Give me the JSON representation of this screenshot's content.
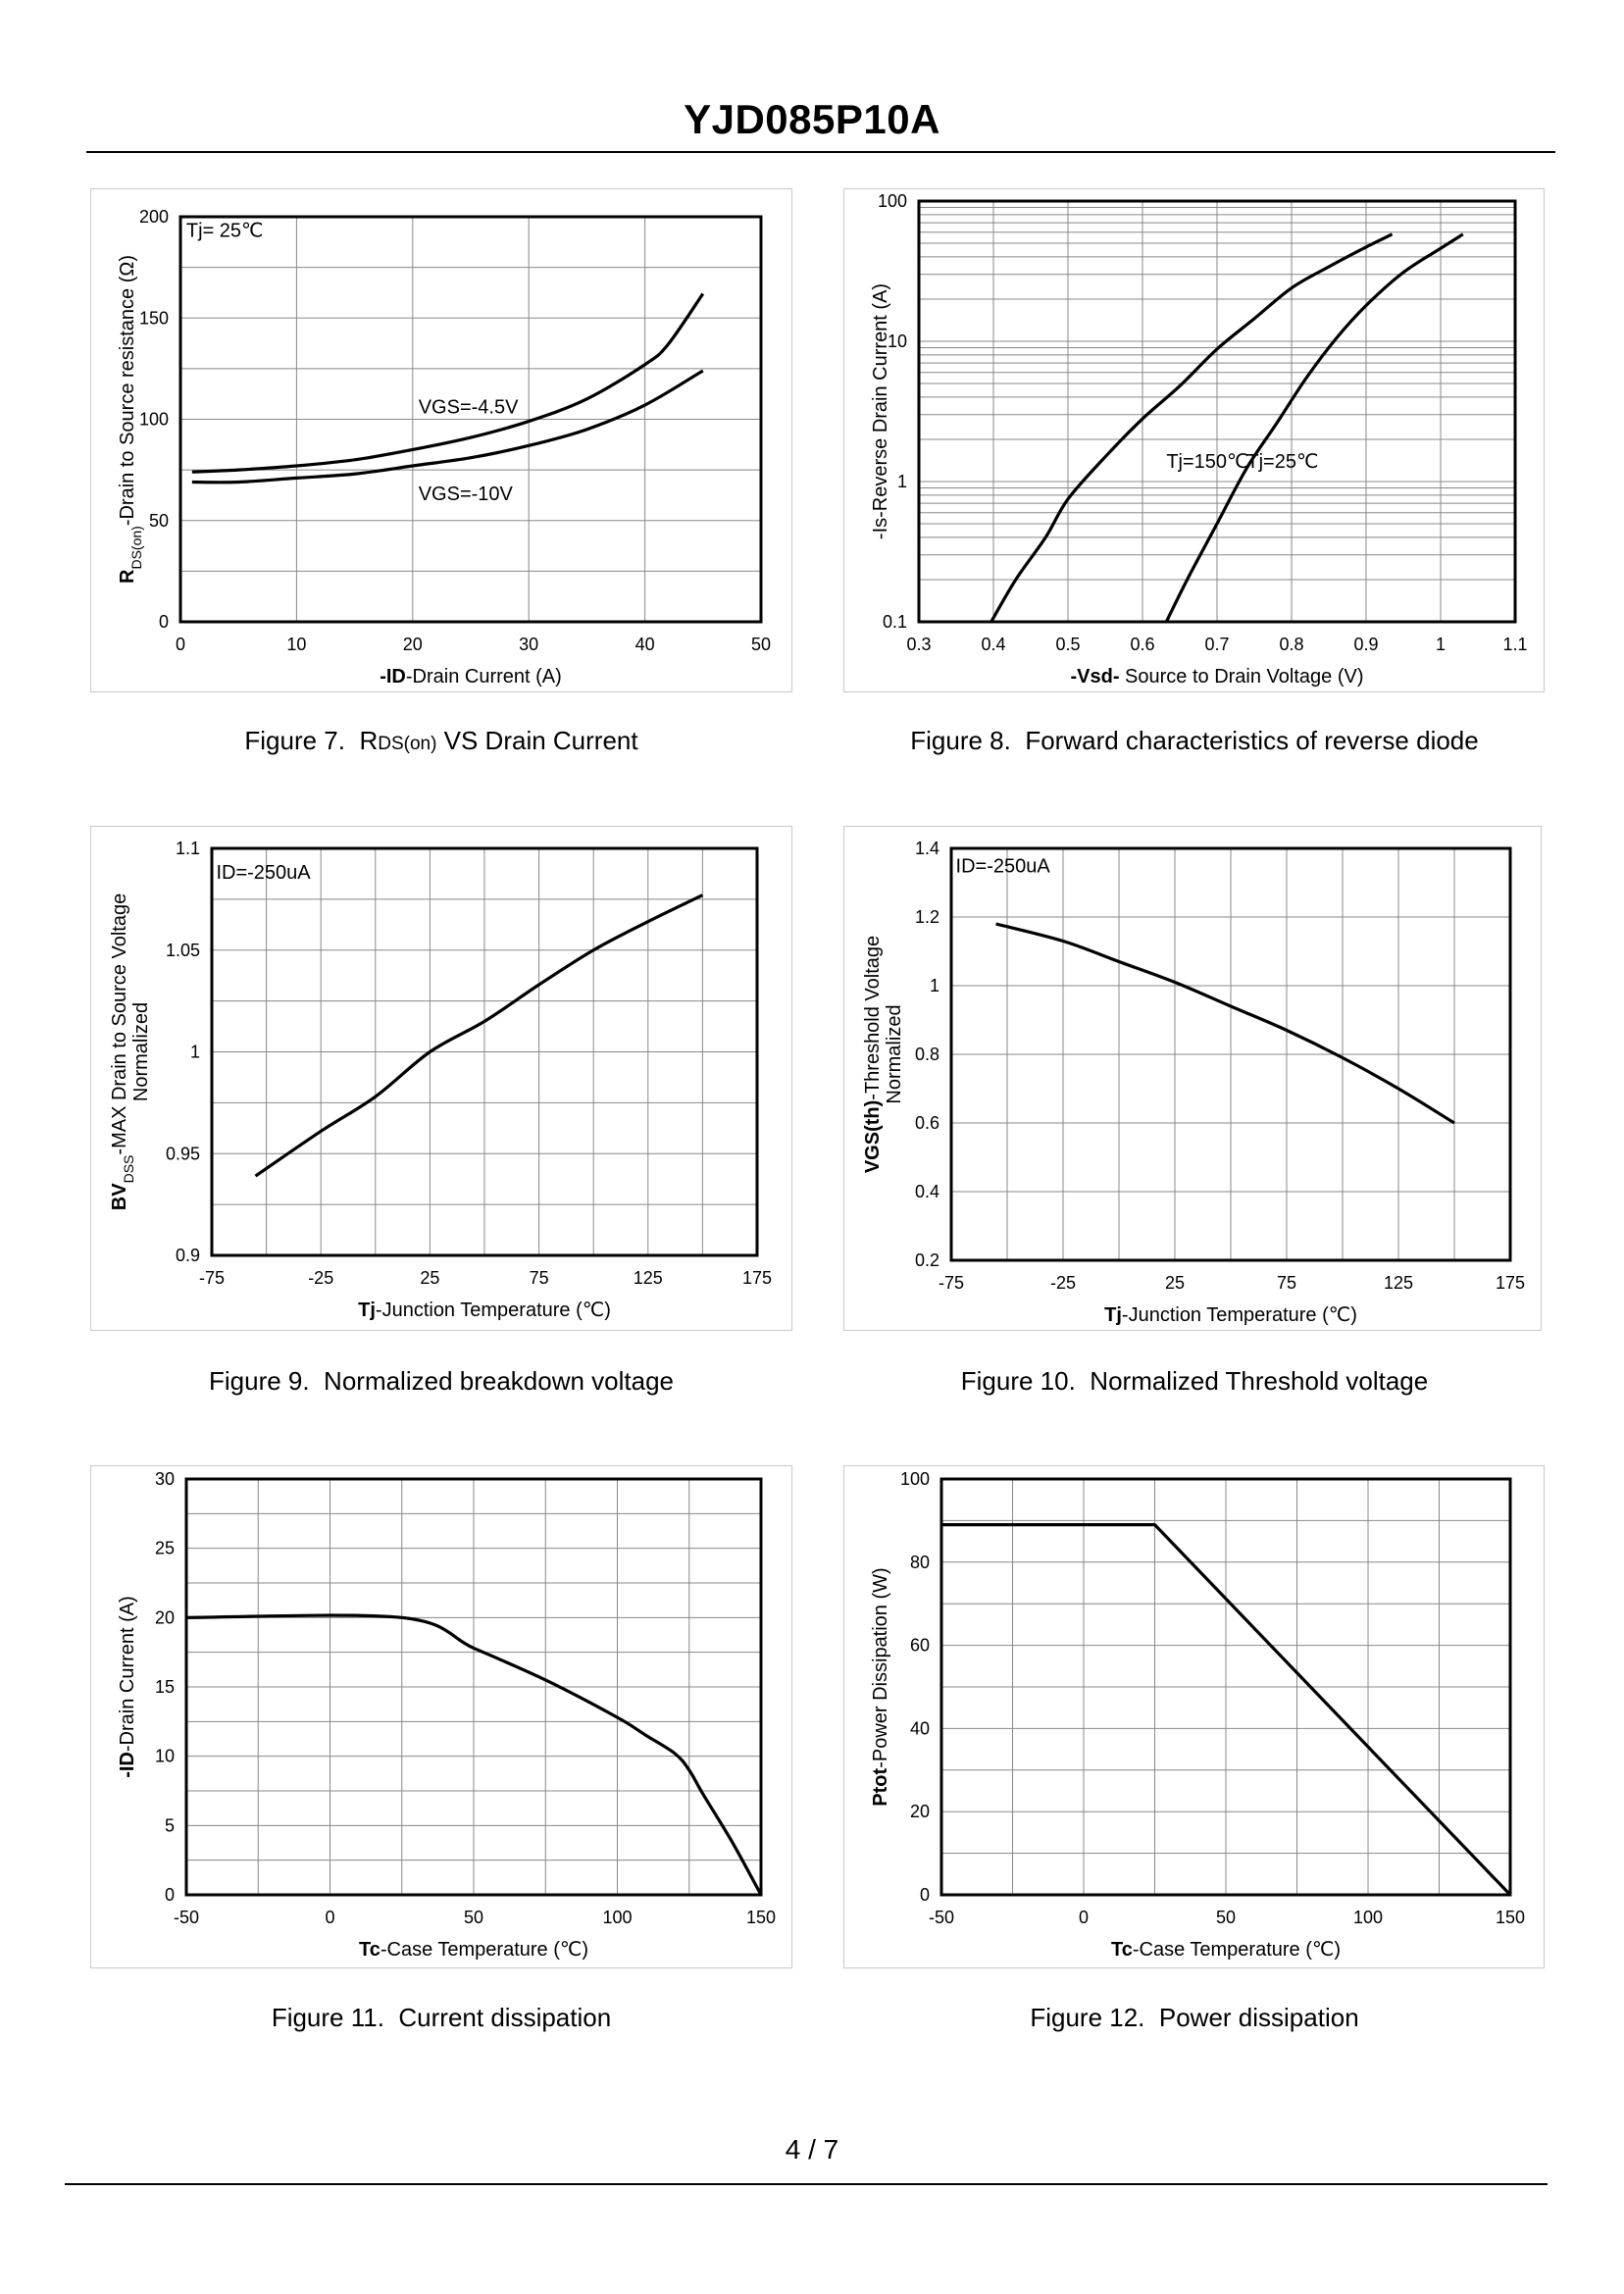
{
  "document": {
    "title": "YJD085P10A",
    "page": "4 / 7"
  },
  "captions": [
    {
      "figure": "Figure 7.",
      "prefix": "R",
      "sub": "DS(on)",
      "suffix": " VS Drain Current"
    },
    {
      "figure": "Figure 8.",
      "prefix": "Forward characteristics of reverse diode",
      "sub": "",
      "suffix": ""
    },
    {
      "figure": "Figure 9.",
      "prefix": "Normalized breakdown voltage",
      "sub": "",
      "suffix": ""
    },
    {
      "figure": "Figure 10.",
      "prefix": "Normalized Threshold voltage",
      "sub": "",
      "suffix": ""
    },
    {
      "figure": "Figure 11.",
      "prefix": "Current dissipation",
      "sub": "",
      "suffix": ""
    },
    {
      "figure": "Figure 12.",
      "prefix": "Power dissipation",
      "sub": "",
      "suffix": ""
    }
  ],
  "chart_data": [
    {
      "type": "line",
      "title": "Figure 7. RDS(on) VS Drain Current",
      "xlabel": {
        "bold": "-ID",
        "rest": "-Drain Current (A)"
      },
      "ylabel": {
        "runs": [
          {
            "t": "R",
            "b": true
          },
          {
            "t": "DS(on)",
            "sub": true
          },
          {
            "t": "-Drain to Source resistance (Ω)"
          }
        ]
      },
      "xlim": [
        0,
        50
      ],
      "ylim": [
        0,
        200
      ],
      "xscale": "linear",
      "yscale": "linear",
      "xticks": [
        0,
        10,
        20,
        30,
        40,
        50
      ],
      "yticks": [
        0,
        50,
        100,
        150,
        200
      ],
      "xgrid": [
        0,
        10,
        20,
        30,
        40,
        50
      ],
      "ygrid": [
        0,
        25,
        50,
        75,
        100,
        125,
        150,
        175,
        200
      ],
      "annotations": [
        {
          "text": "Tj= 25℃",
          "x": 0.5,
          "y": 190,
          "anchor": "start"
        },
        {
          "text": "VGS=-4.5V",
          "x": 20.5,
          "y": 103,
          "anchor": "start"
        },
        {
          "text": "VGS=-10V",
          "x": 20.5,
          "y": 60,
          "anchor": "start"
        }
      ],
      "series": [
        {
          "name": "VGS=-4.5V",
          "x": [
            1,
            5,
            10,
            15,
            20,
            25,
            30,
            35,
            40,
            42,
            45
          ],
          "y": [
            74,
            75,
            77,
            80,
            85,
            91,
            99,
            110,
            127,
            137,
            162
          ]
        },
        {
          "name": "VGS=-10V",
          "x": [
            1,
            5,
            10,
            15,
            20,
            25,
            30,
            35,
            40,
            45
          ],
          "y": [
            69,
            69,
            71,
            73,
            77,
            81,
            87,
            95,
            107,
            124
          ]
        }
      ]
    },
    {
      "type": "line",
      "title": "Figure 8. Forward characteristics of reverse diode",
      "xlabel": {
        "bold": "-Vsd-",
        "rest": " Source to Drain Voltage (V)"
      },
      "ylabel": {
        "runs": [
          {
            "t": "-Is-Reverse Drain Current (A)"
          }
        ]
      },
      "xlim": [
        0.3,
        1.1
      ],
      "ylim": [
        0.1,
        100
      ],
      "xscale": "linear",
      "yscale": "log",
      "xticks": [
        0.3,
        0.4,
        0.5,
        0.6,
        0.7,
        0.8,
        0.9,
        1,
        1.1
      ],
      "yticks": [
        0.1,
        1,
        10,
        100
      ],
      "xgrid": [
        0.3,
        0.4,
        0.5,
        0.6,
        0.7,
        0.8,
        0.9,
        1.0,
        1.1
      ],
      "ygrid": [
        0.1,
        0.2,
        0.3,
        0.4,
        0.5,
        0.6,
        0.7,
        0.8,
        0.9,
        1,
        2,
        3,
        4,
        5,
        6,
        7,
        8,
        9,
        10,
        20,
        30,
        40,
        50,
        60,
        70,
        80,
        90,
        100
      ],
      "annotations": [
        {
          "text": "Tj=150℃",
          "x": 0.632,
          "y": 1.25,
          "anchor": "start"
        },
        {
          "text": "Tj=25℃",
          "x": 0.74,
          "y": 1.25,
          "anchor": "start"
        }
      ],
      "series": [
        {
          "name": "Tj=150℃",
          "x": [
            0.397,
            0.43,
            0.47,
            0.5,
            0.55,
            0.6,
            0.65,
            0.7,
            0.75,
            0.8,
            0.85,
            0.9,
            0.935
          ],
          "y": [
            0.1,
            0.2,
            0.4,
            0.75,
            1.5,
            2.8,
            4.8,
            8.8,
            14.5,
            24,
            34,
            47,
            58
          ]
        },
        {
          "name": "Tj=25℃",
          "x": [
            0.632,
            0.66,
            0.7,
            0.74,
            0.78,
            0.82,
            0.86,
            0.9,
            0.95,
            1.0,
            1.03
          ],
          "y": [
            0.1,
            0.2,
            0.5,
            1.25,
            2.6,
            5.5,
            10.5,
            18,
            31,
            46,
            58
          ]
        }
      ]
    },
    {
      "type": "line",
      "title": "Figure 9. Normalized breakdown voltage",
      "xlabel": {
        "bold": "Tj",
        "rest": "-Junction Temperature (℃)"
      },
      "ylabel": {
        "runs": [
          {
            "t": "BV",
            "b": true
          },
          {
            "t": "DSS",
            "sub": true
          },
          {
            "t": "-MAX Drain to Source Voltage"
          }
        ],
        "line2": "Normalized"
      },
      "xlim": [
        -75,
        175
      ],
      "ylim": [
        0.9,
        1.1
      ],
      "xscale": "linear",
      "yscale": "linear",
      "xticks": [
        -75,
        -25,
        25,
        75,
        125,
        175
      ],
      "yticks": [
        0.9,
        0.95,
        1,
        1.05,
        1.1
      ],
      "xgrid": [
        -75,
        -50,
        -25,
        0,
        25,
        50,
        75,
        100,
        125,
        150,
        175
      ],
      "ygrid": [
        0.9,
        0.925,
        0.95,
        0.975,
        1.0,
        1.025,
        1.05,
        1.075,
        1.1
      ],
      "annotations": [
        {
          "text": "ID=-250uA",
          "x": -73,
          "y": 1.085,
          "anchor": "start"
        }
      ],
      "series": [
        {
          "name": "BVDSS",
          "x": [
            -55,
            -25,
            0,
            25,
            50,
            75,
            100,
            125,
            150
          ],
          "y": [
            0.939,
            0.961,
            0.978,
            1.0,
            1.015,
            1.033,
            1.05,
            1.064,
            1.077
          ]
        }
      ]
    },
    {
      "type": "line",
      "title": "Figure 10. Normalized Threshold voltage",
      "xlabel": {
        "bold": "Tj",
        "rest": "-Junction Temperature (℃)"
      },
      "ylabel": {
        "runs": [
          {
            "t": "VGS(th)",
            "b": true
          },
          {
            "t": "-Threshold Voltage"
          }
        ],
        "line2": "Normalized"
      },
      "xlim": [
        -75,
        175
      ],
      "ylim": [
        0.2,
        1.4
      ],
      "xscale": "linear",
      "yscale": "linear",
      "xticks": [
        -75,
        -25,
        25,
        75,
        125,
        175
      ],
      "yticks": [
        0.2,
        0.4,
        0.6,
        0.8,
        1,
        1.2,
        1.4
      ],
      "xgrid": [
        -75,
        -50,
        -25,
        0,
        25,
        50,
        75,
        100,
        125,
        150,
        175
      ],
      "ygrid": [
        0.2,
        0.4,
        0.6,
        0.8,
        1.0,
        1.2,
        1.4
      ],
      "annotations": [
        {
          "text": "ID=-250uA",
          "x": -73,
          "y": 1.33,
          "anchor": "start"
        }
      ],
      "series": [
        {
          "name": "VGS(th)",
          "x": [
            -55,
            -25,
            0,
            25,
            50,
            75,
            100,
            125,
            150
          ],
          "y": [
            1.18,
            1.13,
            1.07,
            1.01,
            0.94,
            0.87,
            0.79,
            0.7,
            0.6
          ]
        }
      ]
    },
    {
      "type": "line",
      "title": "Figure 11. Current dissipation",
      "xlabel": {
        "bold": "Tc",
        "rest": "-Case Temperature (℃)"
      },
      "ylabel": {
        "runs": [
          {
            "t": "-ID",
            "b": true
          },
          {
            "t": "-Drain Current (A)"
          }
        ]
      },
      "xlim": [
        -50,
        150
      ],
      "ylim": [
        0,
        30
      ],
      "xscale": "linear",
      "yscale": "linear",
      "xticks": [
        -50,
        0,
        50,
        100,
        150
      ],
      "yticks": [
        0,
        5,
        10,
        15,
        20,
        25,
        30
      ],
      "xgrid": [
        -50,
        -25,
        0,
        25,
        50,
        75,
        100,
        125,
        150
      ],
      "ygrid": [
        0,
        2.5,
        5,
        7.5,
        10,
        12.5,
        15,
        17.5,
        20,
        22.5,
        25,
        27.5,
        30
      ],
      "annotations": [],
      "series": [
        {
          "name": "ID",
          "x": [
            -50,
            25,
            50,
            75,
            100,
            110,
            120,
            125,
            130,
            140,
            150
          ],
          "y": [
            20,
            20,
            17.8,
            15.5,
            12.8,
            11.5,
            10.2,
            9.0,
            7.2,
            3.8,
            0
          ]
        }
      ]
    },
    {
      "type": "line",
      "title": "Figure 12. Power dissipation",
      "xlabel": {
        "bold": "Tc",
        "rest": "-Case Temperature (℃)"
      },
      "ylabel": {
        "runs": [
          {
            "t": "Ptot",
            "b": true
          },
          {
            "t": "-Power Dissipation (W)"
          }
        ]
      },
      "xlim": [
        -50,
        150
      ],
      "ylim": [
        0,
        100
      ],
      "xscale": "linear",
      "yscale": "linear",
      "xticks": [
        -50,
        0,
        50,
        100,
        150
      ],
      "yticks": [
        0,
        20,
        40,
        60,
        80,
        100
      ],
      "xgrid": [
        -50,
        -25,
        0,
        25,
        50,
        75,
        100,
        125,
        150
      ],
      "ygrid": [
        0,
        10,
        20,
        30,
        40,
        50,
        60,
        70,
        80,
        90,
        100
      ],
      "annotations": [],
      "series": [
        {
          "name": "Ptot",
          "x": [
            -50,
            25,
            150
          ],
          "y": [
            89,
            89,
            0
          ]
        }
      ]
    }
  ]
}
